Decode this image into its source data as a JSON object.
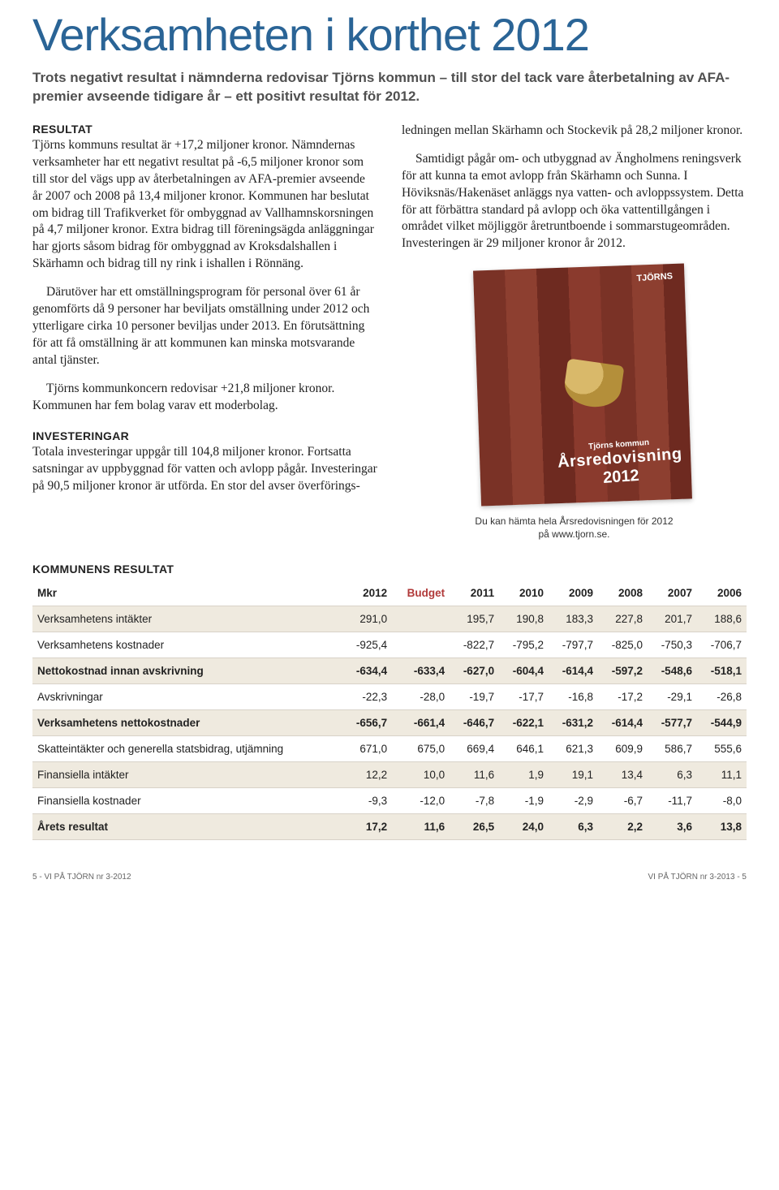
{
  "title": "Verksamheten i korthet 2012",
  "intro": "Trots negativt resultat i nämnderna redovisar Tjörns kommun – till stor del tack vare återbetalning av AFA-premier avseende tidigare år – ett positivt resultat för 2012.",
  "resultat_head": "RESULTAT",
  "resultat_p1": "Tjörns kommuns resultat är +17,2 miljoner kronor. Nämndernas verksamheter har ett negativt resultat på -6,5 miljoner kronor som till stor del vägs upp av återbetalningen av AFA-premier avseende år 2007 och 2008 på 13,4 miljoner kronor. Kommunen har beslutat om bidrag till Trafikverket för ombyggnad av Vallhamnskorsningen på 4,7 miljoner kronor. Extra bidrag till föreningsägda anläggningar har gjorts såsom bidrag för ombyggnad av Kroksdalshallen i Skärhamn och bidrag till ny rink i ishallen i Rönnäng.",
  "resultat_p2": "Därutöver har ett omställningsprogram för personal över 61 år genomförts då 9 personer har beviljats omställning under 2012 och ytterligare cirka 10 personer beviljas under 2013. En förutsättning för att få omställning är att kommunen kan minska motsvarande antal tjänster.",
  "resultat_p3": "Tjörns kommunkoncern redovisar +21,8 miljoner kronor. Kommunen har fem bolag varav ett moderbolag.",
  "invest_head": "INVESTERINGAR",
  "invest_p1": "Totala investeringar uppgår till 104,8 miljoner kronor. Fortsatta satsningar av uppbyggnad för vatten och avlopp pågår. Investeringar på 90,5 miljoner kronor är utförda. En stor del avser överförings-",
  "right_p1": "ledningen mellan Skärhamn och Stockevik på 28,2 miljoner kronor.",
  "right_p2": "Samtidigt pågår om- och utbyggnad av Ängholmens reningsverk för att kunna ta emot avlopp från Skärhamn och Sunna. I Höviksnäs/Hakenäset anläggs nya vatten- och avloppssystem. Detta för att förbättra standard på avlopp och öka vattentillgången i området vilket möjliggör åretruntboende i sommarstugeområden. Investeringen är 29 miljoner kronor år 2012.",
  "report_logo": "TJÖRNS",
  "report_ln1": "Tjörns kommun",
  "report_ln2": "Årsredovisning",
  "report_ln3": "2012",
  "report_caption": "Du kan hämta hela Årsredovisningen för 2012 på www.tjorn.se.",
  "table_head": "KOMMUNENS RESULTAT",
  "table": {
    "accent_color": "#b13a3a",
    "band_bg": "#efeadf",
    "columns": [
      "Mkr",
      "2012",
      "Budget",
      "2011",
      "2010",
      "2009",
      "2008",
      "2007",
      "2006"
    ],
    "rows": [
      {
        "label": "Verksamhetens intäkter",
        "vals": [
          "291,0",
          "",
          "195,7",
          "190,8",
          "183,3",
          "227,8",
          "201,7",
          "188,6"
        ],
        "band": true,
        "bold": false
      },
      {
        "label": "Verksamhetens kostnader",
        "vals": [
          "-925,4",
          "",
          "-822,7",
          "-795,2",
          "-797,7",
          "-825,0",
          "-750,3",
          "-706,7"
        ],
        "band": false,
        "bold": false
      },
      {
        "label": "Nettokostnad innan avskrivning",
        "vals": [
          "-634,4",
          "-633,4",
          "-627,0",
          "-604,4",
          "-614,4",
          "-597,2",
          "-548,6",
          "-518,1"
        ],
        "band": true,
        "bold": true
      },
      {
        "label": "Avskrivningar",
        "vals": [
          "-22,3",
          "-28,0",
          "-19,7",
          "-17,7",
          "-16,8",
          "-17,2",
          "-29,1",
          "-26,8"
        ],
        "band": false,
        "bold": false
      },
      {
        "label": "Verksamhetens nettokostnader",
        "vals": [
          "-656,7",
          "-661,4",
          "-646,7",
          "-622,1",
          "-631,2",
          "-614,4",
          "-577,7",
          "-544,9"
        ],
        "band": true,
        "bold": true
      },
      {
        "label": "Skatteintäkter och generella statsbidrag, utjämning",
        "vals": [
          "671,0",
          "675,0",
          "669,4",
          "646,1",
          "621,3",
          "609,9",
          "586,7",
          "555,6"
        ],
        "band": false,
        "bold": false
      },
      {
        "label": "Finansiella intäkter",
        "vals": [
          "12,2",
          "10,0",
          "11,6",
          "1,9",
          "19,1",
          "13,4",
          "6,3",
          "11,1"
        ],
        "band": true,
        "bold": false
      },
      {
        "label": "Finansiella kostnader",
        "vals": [
          "-9,3",
          "-12,0",
          "-7,8",
          "-1,9",
          "-2,9",
          "-6,7",
          "-11,7",
          "-8,0"
        ],
        "band": false,
        "bold": false
      },
      {
        "label": "Årets resultat",
        "vals": [
          "17,2",
          "11,6",
          "26,5",
          "24,0",
          "6,3",
          "2,2",
          "3,6",
          "13,8"
        ],
        "band": true,
        "bold": true
      }
    ]
  },
  "footer_left": "5 - VI PÅ TJÖRN nr 3-2012",
  "footer_right": "VI PÅ TJÖRN nr 3-2013 - 5"
}
